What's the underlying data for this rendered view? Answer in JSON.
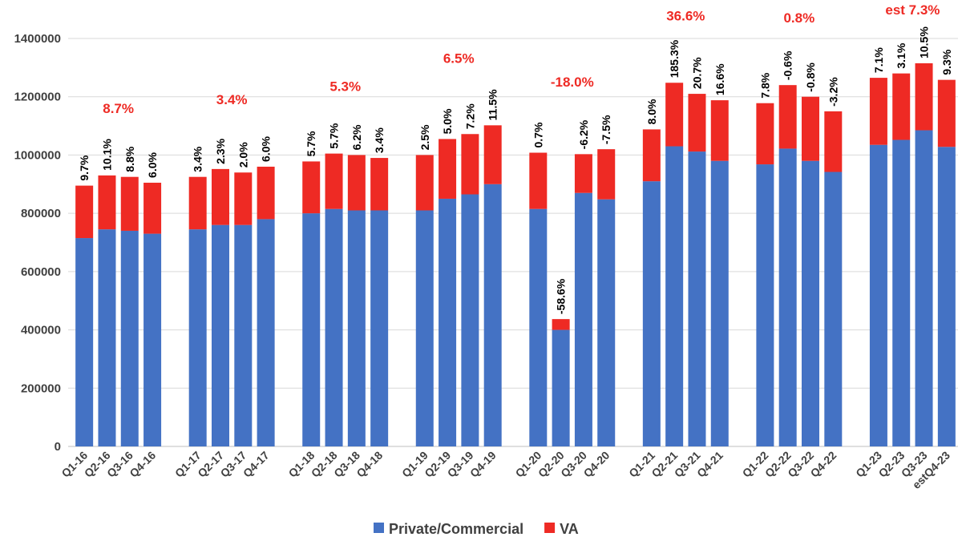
{
  "chart_data": {
    "type": "stacked_bar",
    "categories": [
      "Q1-16",
      "Q2-16",
      "Q3-16",
      "Q4-16",
      null,
      "Q1-17",
      "Q2-17",
      "Q3-17",
      "Q4-17",
      null,
      "Q1-18",
      "Q2-18",
      "Q3-18",
      "Q4-18",
      null,
      "Q1-19",
      "Q2-19",
      "Q3-19",
      "Q4-19",
      null,
      "Q1-20",
      "Q2-20",
      "Q3-20",
      "Q4-20",
      null,
      "Q1-21",
      "Q2-21",
      "Q3-21",
      "Q4-21",
      null,
      "Q1-22",
      "Q2-22",
      "Q3-22",
      "Q4-22",
      null,
      "Q1-23",
      "Q2-23",
      "Q3-23",
      "estQ4-23"
    ],
    "series": [
      {
        "name": "Private/Commercial",
        "color": "#4472c4",
        "values": [
          715000,
          745000,
          740000,
          730000,
          null,
          745000,
          760000,
          760000,
          780000,
          null,
          800000,
          815000,
          810000,
          810000,
          null,
          810000,
          850000,
          865000,
          900000,
          null,
          815000,
          400000,
          870000,
          848000,
          null,
          910000,
          1030000,
          1012000,
          980000,
          null,
          968000,
          1022000,
          980000,
          942000,
          null,
          1035000,
          1052000,
          1085000,
          1028000
        ]
      },
      {
        "name": "VA",
        "color": "#ee2a24",
        "values": [
          180000,
          185000,
          185000,
          175000,
          null,
          180000,
          192000,
          180000,
          180000,
          null,
          178000,
          190000,
          190000,
          180000,
          null,
          190000,
          205000,
          207000,
          202000,
          null,
          193000,
          37000,
          133000,
          172000,
          null,
          178000,
          218000,
          198000,
          208000,
          null,
          210000,
          218000,
          220000,
          208000,
          null,
          230000,
          228000,
          230000,
          230000
        ]
      }
    ],
    "bar_labels": [
      "9.7%",
      "10.1%",
      "8.8%",
      "6.0%",
      null,
      "3.4%",
      "2.3%",
      "2.0%",
      "6.0%",
      null,
      "5.7%",
      "5.7%",
      "6.2%",
      "3.4%",
      null,
      "2.5%",
      "5.0%",
      "7.2%",
      "11.5%",
      null,
      "0.7%",
      "-58.6%",
      "-6.2%",
      "-7.5%",
      null,
      "8.0%",
      "185.3%",
      "20.7%",
      "16.6%",
      null,
      "7.8%",
      "-0.6%",
      "-0.8%",
      "-3.2%",
      null,
      "7.1%",
      "3.1%",
      "10.5%",
      "9.3%"
    ],
    "annotations": [
      "8.7%",
      "3.4%",
      "5.3%",
      "6.5%",
      "-18.0%",
      "36.6%",
      "0.8%",
      "est 7.3%"
    ],
    "ylim": [
      0,
      1400000
    ],
    "yticks": [
      0,
      200000,
      400000,
      600000,
      800000,
      1000000,
      1200000,
      1400000
    ],
    "grid": true,
    "legend": "bottom"
  }
}
